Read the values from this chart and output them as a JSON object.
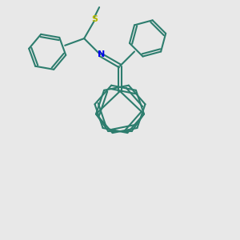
{
  "bg_color": "#e8e8e8",
  "bond_color": "#2d7d6e",
  "N_color": "#0000ee",
  "S_color": "#bbbb00",
  "lw": 1.5,
  "figsize": [
    3.0,
    3.0
  ],
  "dpi": 100
}
